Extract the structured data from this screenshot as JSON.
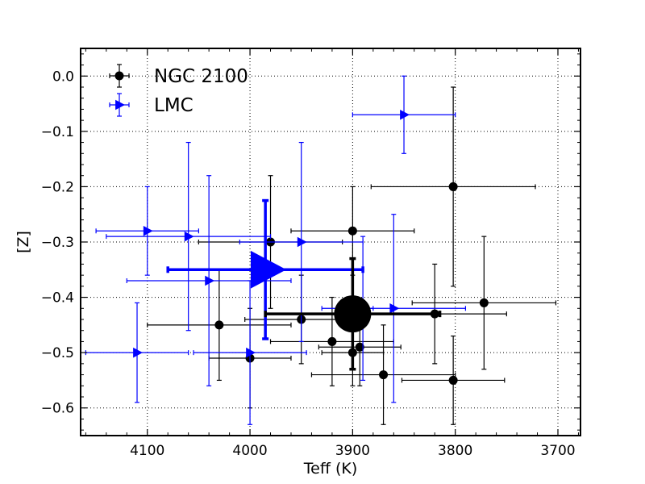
{
  "chart_data": {
    "type": "scatter",
    "title": "",
    "xlabel": "Teff (K)",
    "ylabel": "[Z]",
    "xlim": [
      4165,
      3678
    ],
    "ylim": [
      -0.65,
      0.05
    ],
    "x_inverted": true,
    "grid": true,
    "legend_placement": "top-left",
    "x_ticks": [
      {
        "value": 4100,
        "label": "4100"
      },
      {
        "value": 4000,
        "label": "4000"
      },
      {
        "value": 3900,
        "label": "3900"
      },
      {
        "value": 3800,
        "label": "3800"
      },
      {
        "value": 3700,
        "label": "3700"
      }
    ],
    "y_ticks": [
      {
        "value": 0.0,
        "label": "0.0"
      },
      {
        "value": -0.1,
        "label": "−0.1"
      },
      {
        "value": -0.2,
        "label": "−0.2"
      },
      {
        "value": -0.3,
        "label": "−0.3"
      },
      {
        "value": -0.4,
        "label": "−0.4"
      },
      {
        "value": -0.5,
        "label": "−0.5"
      },
      {
        "value": -0.6,
        "label": "−0.6"
      }
    ],
    "series": [
      {
        "name": "NGC 2100",
        "color": "#000000",
        "marker": "circle",
        "points": [
          {
            "x": 3802,
            "y": -0.2,
            "xerr": 80,
            "yerr": 0.18
          },
          {
            "x": 3772,
            "y": -0.41,
            "xerr": 70,
            "yerr": 0.12
          },
          {
            "x": 3900,
            "y": -0.28,
            "xerr": 60,
            "yerr": 0.08
          },
          {
            "x": 3980,
            "y": -0.3,
            "xerr": 70,
            "yerr": 0.12
          },
          {
            "x": 3820,
            "y": -0.43,
            "xerr": 70,
            "yerr": 0.09
          },
          {
            "x": 3950,
            "y": -0.44,
            "xerr": 55,
            "yerr": 0.08
          },
          {
            "x": 4030,
            "y": -0.45,
            "xerr": 70,
            "yerr": 0.1
          },
          {
            "x": 3920,
            "y": -0.48,
            "xerr": 60,
            "yerr": 0.08
          },
          {
            "x": 3900,
            "y": -0.5,
            "xerr": 30,
            "yerr": 0.06
          },
          {
            "x": 3893,
            "y": -0.49,
            "xerr": 40,
            "yerr": 0.07
          },
          {
            "x": 4000,
            "y": -0.51,
            "xerr": 40,
            "yerr": 0.09
          },
          {
            "x": 3870,
            "y": -0.54,
            "xerr": 70,
            "yerr": 0.09
          },
          {
            "x": 3802,
            "y": -0.55,
            "xerr": 50,
            "yerr": 0.08
          }
        ]
      },
      {
        "name": "LMC",
        "color": "#0000ff",
        "marker": "triangle-right",
        "points": [
          {
            "x": 3850,
            "y": -0.07,
            "xerr": 50,
            "yerr": 0.07
          },
          {
            "x": 4100,
            "y": -0.28,
            "xerr": 50,
            "yerr": 0.08
          },
          {
            "x": 4060,
            "y": -0.29,
            "xerr": 80,
            "yerr": 0.17
          },
          {
            "x": 3950,
            "y": -0.3,
            "xerr": 60,
            "yerr": 0.18
          },
          {
            "x": 4040,
            "y": -0.37,
            "xerr": 80,
            "yerr": 0.19
          },
          {
            "x": 3860,
            "y": -0.42,
            "xerr": 70,
            "yerr": 0.17
          },
          {
            "x": 3890,
            "y": -0.42,
            "xerr": 10,
            "yerr": 0.13
          },
          {
            "x": 4000,
            "y": -0.5,
            "xerr": 55,
            "yerr": 0.13
          },
          {
            "x": 4110,
            "y": -0.5,
            "xerr": 50,
            "yerr": 0.09
          }
        ]
      },
      {
        "name": "",
        "color": "#0000ff",
        "marker": "triangle-right",
        "emphasized": true,
        "points": [
          {
            "x": 3985,
            "y": -0.35,
            "xerr": 95,
            "yerr": 0.125
          }
        ]
      },
      {
        "name": "",
        "color": "#000000",
        "marker": "circle",
        "emphasized": true,
        "points": [
          {
            "x": 3900,
            "y": -0.43,
            "xerr": 85,
            "yerr": 0.1
          }
        ]
      }
    ]
  }
}
